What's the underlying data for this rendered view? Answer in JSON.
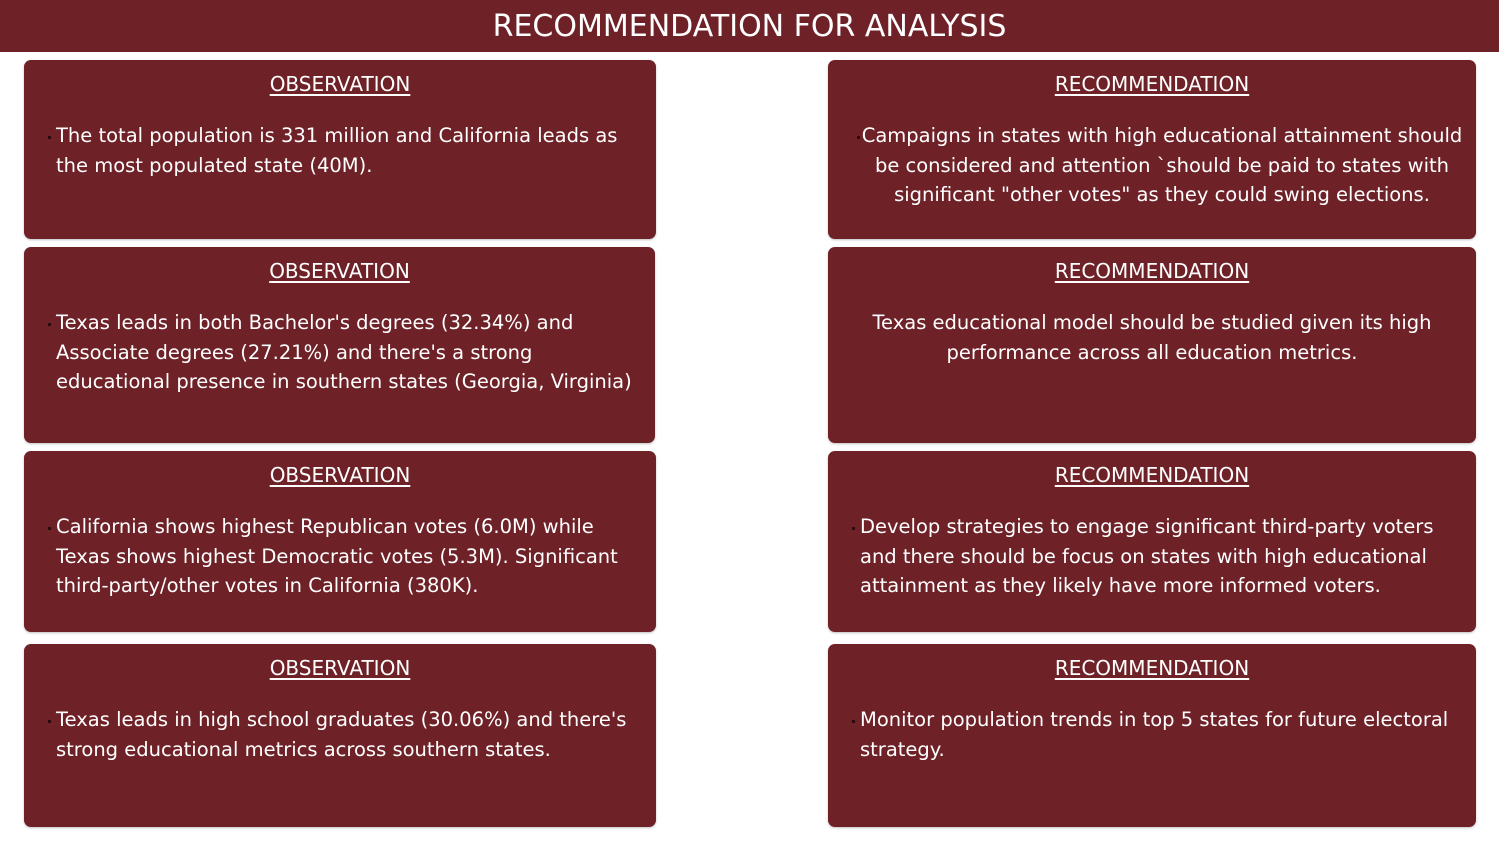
{
  "header": {
    "title": "RECOMMENDATION FOR ANALYSIS"
  },
  "observations": [
    {
      "heading": "OBSERVATION",
      "text": "The total population is 331 million and California leads as the most populated state (40M)."
    },
    {
      "heading": "OBSERVATION",
      "text": "Texas leads in both Bachelor's degrees (32.34%) and Associate degrees (27.21%) and there's a strong educational presence in southern states (Georgia, Virginia)"
    },
    {
      "heading": "OBSERVATION",
      "text": "California shows highest Republican votes (6.0M) while Texas shows highest Democratic votes (5.3M). Significant third-party/other votes in California (380K)."
    },
    {
      "heading": "OBSERVATION",
      "text": "Texas leads in high school graduates (30.06%) and there's strong educational metrics across southern states."
    }
  ],
  "recommendations": [
    {
      "heading": "RECOMMENDATION",
      "text": "Campaigns in states with high educational attainment should be considered and attention `should be paid to states with significant \"other votes\" as they could swing elections."
    },
    {
      "heading": "RECOMMENDATION",
      "text": "Texas educational model should be studied given its high performance across all education metrics."
    },
    {
      "heading": "RECOMMENDATION",
      "text": "Develop strategies to engage significant third-party voters and there should be focus on states with high educational attainment as they likely have more informed voters."
    },
    {
      "heading": "RECOMMENDATION",
      "text": "Monitor population trends in top 5 states for future electoral strategy."
    }
  ],
  "colors": {
    "card": "#6e2228",
    "text": "#ffffff"
  }
}
